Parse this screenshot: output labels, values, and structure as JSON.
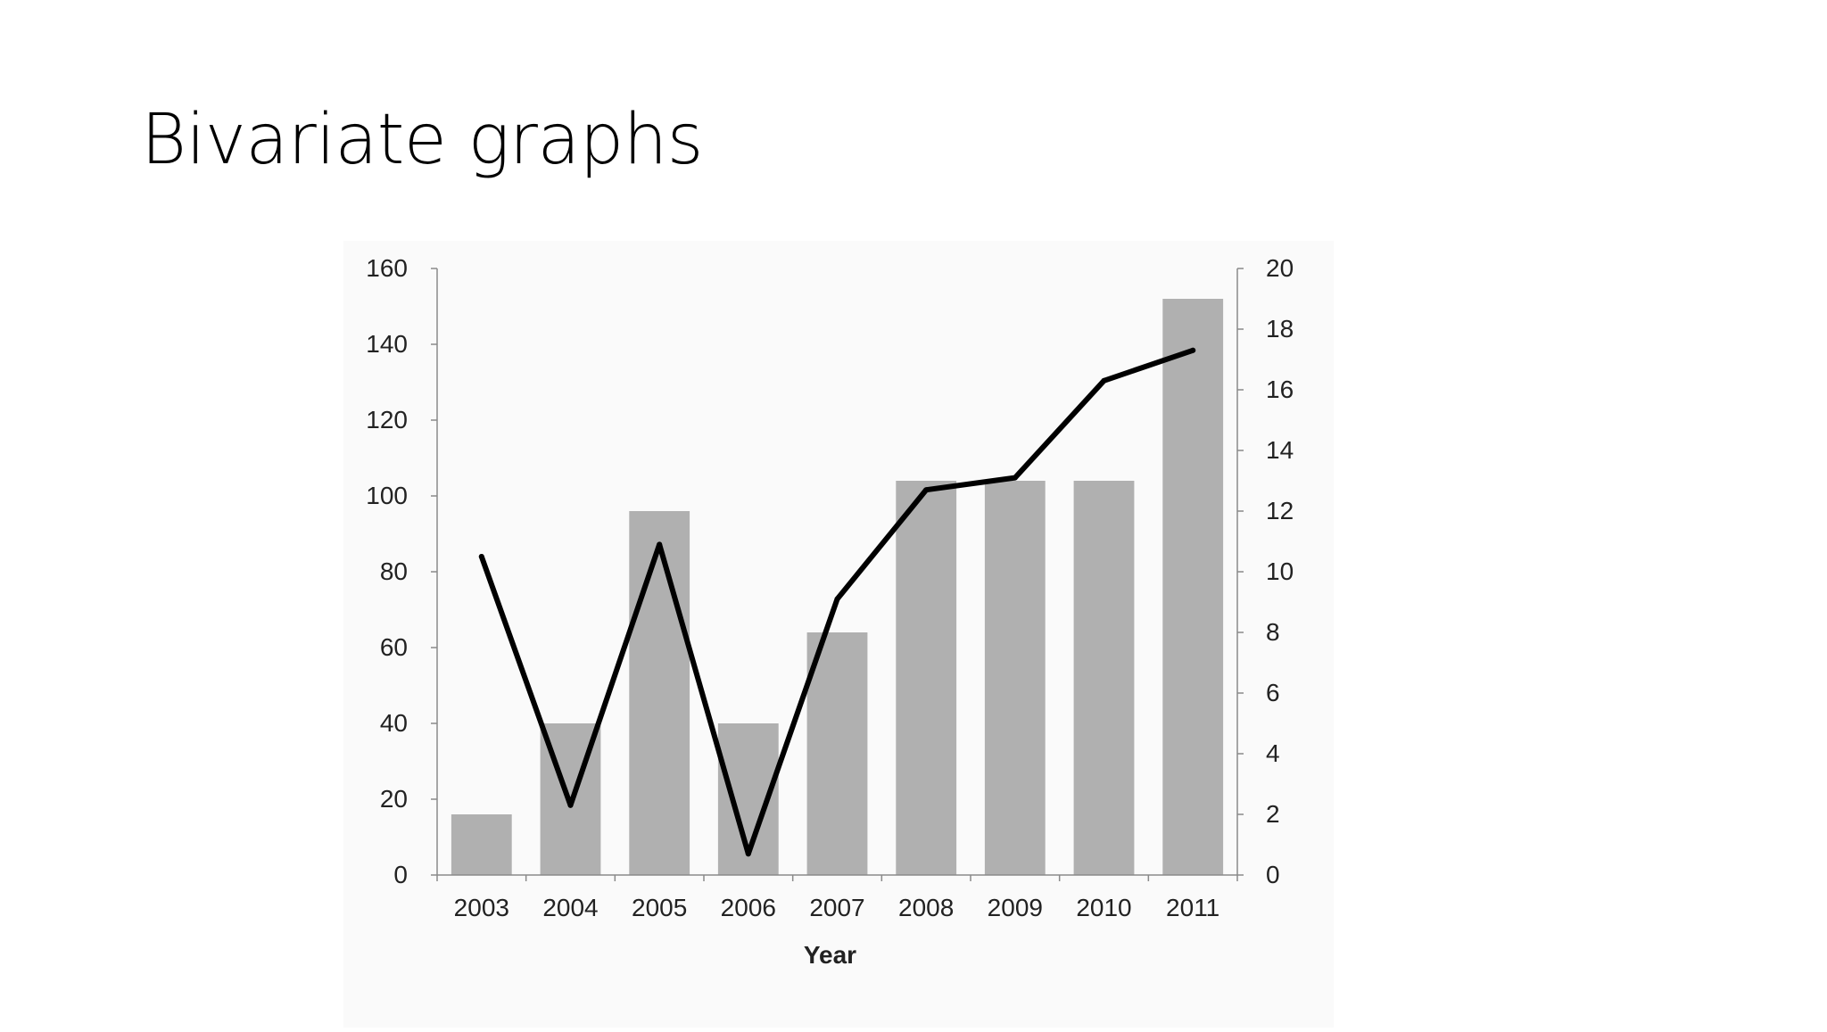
{
  "slide": {
    "title": "Bivariate graphs"
  },
  "chart_data": {
    "type": "bar",
    "title": "",
    "xlabel": "Year",
    "ylabel": "",
    "y2label": "",
    "categories": [
      "2003",
      "2004",
      "2005",
      "2006",
      "2007",
      "2008",
      "2009",
      "2010",
      "2011"
    ],
    "ylim": [
      0,
      160
    ],
    "y2lim": [
      0,
      20
    ],
    "yticks": [
      "0",
      "20",
      "40",
      "60",
      "80",
      "100",
      "120",
      "140",
      "160"
    ],
    "y2ticks": [
      "0",
      "2",
      "4",
      "6",
      "8",
      "10",
      "12",
      "14",
      "16",
      "18",
      "20"
    ],
    "grid": false,
    "legend": "none",
    "series": [
      {
        "type": "bar",
        "axis": "left",
        "color": "#b0b0b0",
        "values": [
          16,
          40,
          96,
          40,
          64,
          104,
          104,
          104,
          152
        ]
      },
      {
        "type": "line",
        "axis": "right",
        "color": "#000000",
        "values": [
          10.5,
          2.3,
          10.9,
          0.7,
          9.1,
          12.7,
          13.1,
          16.3,
          17.3
        ]
      }
    ]
  }
}
